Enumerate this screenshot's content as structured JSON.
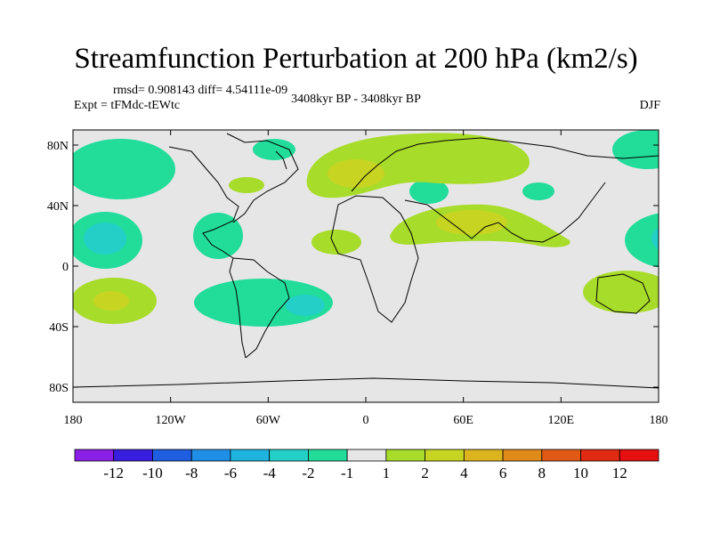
{
  "title": "Streamfunction Perturbation at 200 hPa (km2/s)",
  "stats": "rmsd= 0.908143 diff= 4.54111e-09",
  "experiment": "Expt = tFMdc-tEWtc",
  "period": "3408kyr BP - 3408kyr BP",
  "season": "DJF",
  "axes": {
    "lat_labels": [
      "80N",
      "40N",
      "0",
      "40S",
      "80S"
    ],
    "lat_values": [
      80,
      40,
      0,
      -40,
      -80
    ],
    "lon_labels": [
      "180",
      "120W",
      "60W",
      "0",
      "60E",
      "120E",
      "180"
    ],
    "lon_values": [
      -180,
      -120,
      -60,
      0,
      60,
      120,
      180
    ]
  },
  "colorbar": {
    "labels": [
      "-12",
      "-10",
      "-8",
      "-6",
      "-4",
      "-2",
      "-1",
      "1",
      "2",
      "4",
      "6",
      "8",
      "10",
      "12"
    ],
    "colors": [
      "#8a1fe6",
      "#3a1ee0",
      "#1f5ee0",
      "#1f8ee6",
      "#1fb4e0",
      "#22d0c8",
      "#22dc9a",
      "#e6e6e6",
      "#a8dc2a",
      "#c8d422",
      "#dcb41e",
      "#e08a1a",
      "#e05a16",
      "#e02a12",
      "#e61010"
    ]
  },
  "colors": {
    "neutral": "#e6e6e6",
    "neg1": "#22dc9a",
    "neg2": "#22d0c8",
    "pos1": "#a8dc2a",
    "pos2": "#c8d422",
    "coast": "#000000"
  }
}
